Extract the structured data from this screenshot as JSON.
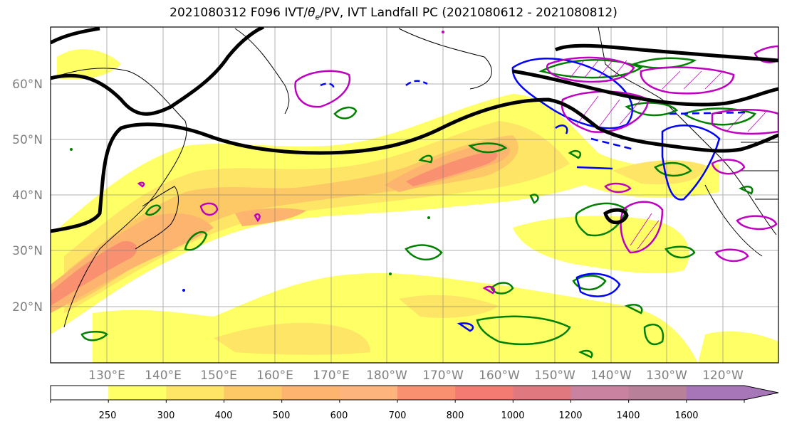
{
  "title": {
    "prefix": "2021080312 F096 IVT/",
    "theta_symbol": "θ",
    "theta_sub": "e",
    "suffix": "/PV, IVT Landfall PC (2021080612 - 2021080812)"
  },
  "map": {
    "lat_labels": [
      "60°N",
      "50°N",
      "40°N",
      "30°N",
      "20°N"
    ],
    "lon_labels": [
      "130°E",
      "140°E",
      "150°E",
      "160°E",
      "170°E",
      "180°W",
      "170°W",
      "160°W",
      "150°W",
      "140°W",
      "130°W",
      "120°W"
    ],
    "lat_values": [
      60,
      50,
      40,
      30,
      20
    ],
    "lon_values": [
      130,
      140,
      150,
      160,
      170,
      180,
      190,
      200,
      210,
      220,
      230,
      240
    ],
    "lat_range": [
      10,
      70
    ],
    "lon_range": [
      120,
      250
    ],
    "grid": true,
    "ivt_fill_colors": [
      "#ffff66",
      "#fee566",
      "#fdc866",
      "#fcb46e",
      "#f99070",
      "#f46f70",
      "#e07880",
      "#b98099",
      "#a676b8"
    ],
    "contour_colors": {
      "thetae_pv_green": "#008000",
      "theta_e_blue": "#0000ff",
      "pv_magenta": "#c000c0",
      "landfall_pc_black": "#000000"
    }
  },
  "colorbar": {
    "levels": [
      "250",
      "300",
      "400",
      "500",
      "600",
      "700",
      "800",
      "1000",
      "1200",
      "1400",
      "1600"
    ],
    "colors": [
      "#ffffff",
      "#ffff66",
      "#fee566",
      "#fdc866",
      "#fcb46e",
      "#fdb57d",
      "#f99070",
      "#f47b72",
      "#e07880",
      "#c983a0",
      "#b98099",
      "#a676b8"
    ]
  }
}
